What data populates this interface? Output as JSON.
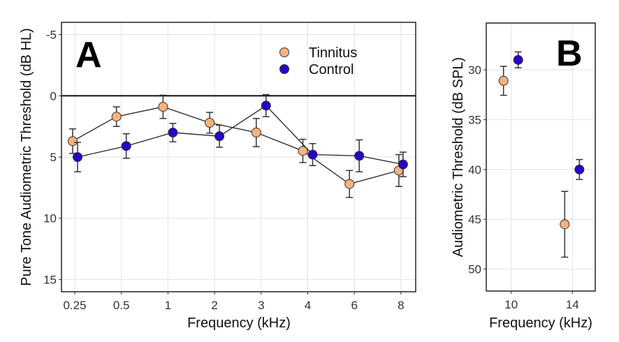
{
  "chart_data": [
    {
      "type": "line",
      "panel_label": "A",
      "xlabel": "Frequency (kHz)",
      "ylabel": "Pure Tone Audiometric Threshold (dB HL)",
      "categories": [
        "0.25",
        "0.5",
        "1",
        "2",
        "3",
        "4",
        "6",
        "8"
      ],
      "y_ticks": [
        -5,
        0,
        5,
        10,
        15
      ],
      "y_tick_labels": [
        "-5",
        "0",
        "5",
        "10",
        "15"
      ],
      "ylim": [
        -6,
        16
      ],
      "y_reversed": true,
      "reference_line": 0,
      "grid": true,
      "legend": "top-right",
      "series": [
        {
          "name": "Tinnitus",
          "color": "#f9b27c",
          "values": [
            3.7,
            1.7,
            0.9,
            2.2,
            3.0,
            4.5,
            7.2,
            6.1
          ],
          "error": [
            1.0,
            0.8,
            0.95,
            0.85,
            1.15,
            0.95,
            1.1,
            1.3
          ]
        },
        {
          "name": "Control",
          "color": "#2a00c8",
          "values": [
            5.0,
            4.1,
            3.0,
            3.3,
            0.8,
            4.8,
            4.9,
            5.6
          ],
          "error": [
            1.2,
            1.0,
            0.75,
            0.9,
            0.9,
            0.9,
            1.3,
            1.0
          ]
        }
      ]
    },
    {
      "type": "scatter",
      "panel_label": "B",
      "xlabel": "Frequency (kHz)",
      "ylabel": "Audiometric Threshold (dB SPL)",
      "categories": [
        "10",
        "14"
      ],
      "y_ticks": [
        30,
        35,
        40,
        45,
        50
      ],
      "y_tick_labels": [
        "30",
        "35",
        "40",
        "45",
        "50"
      ],
      "ylim": [
        25.3,
        52.2
      ],
      "y_reversed": true,
      "grid": true,
      "series": [
        {
          "name": "Tinnitus",
          "color": "#f9b27c",
          "values": [
            31.1,
            45.5
          ],
          "error": [
            1.45,
            3.3
          ]
        },
        {
          "name": "Control",
          "color": "#2a00c8",
          "values": [
            29.0,
            40.0
          ],
          "error": [
            0.8,
            1.0
          ]
        }
      ]
    }
  ]
}
